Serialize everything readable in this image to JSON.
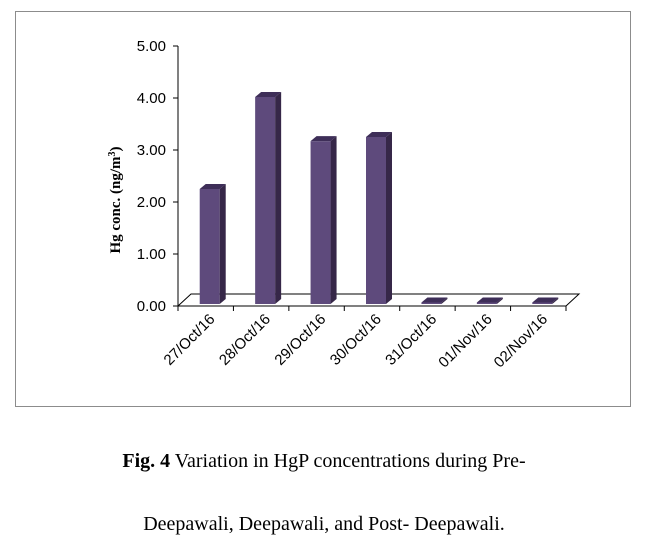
{
  "chart_data": {
    "type": "bar",
    "ylabel": "Hg conc. (ng/m³)",
    "ylabel_parts": {
      "base": "Hg conc. (ng/m",
      "sup": "3",
      "end": ")"
    },
    "categories": [
      "27/Oct/16",
      "28/Oct/16",
      "29/Oct/16",
      "30/Oct/16",
      "31/Oct/16",
      "01/Nov/16",
      "02/Nov/16"
    ],
    "values": [
      2.25,
      4.02,
      3.17,
      3.25,
      0.0,
      0.0,
      0.0
    ],
    "ylim": [
      0,
      5
    ],
    "yticks": [
      "0.00",
      "1.00",
      "2.00",
      "3.00",
      "4.00",
      "5.00"
    ],
    "grid": false,
    "legend": "none",
    "bar_color": "#5e4a7c",
    "bar_top_color": "#3e2e58",
    "bar_side_color": "#362748"
  },
  "caption": {
    "label": "Fig. 4",
    "line1": " Variation in HgP concentrations during Pre-",
    "line2": "Deepawali, Deepawali, and Post- Deepawali."
  }
}
